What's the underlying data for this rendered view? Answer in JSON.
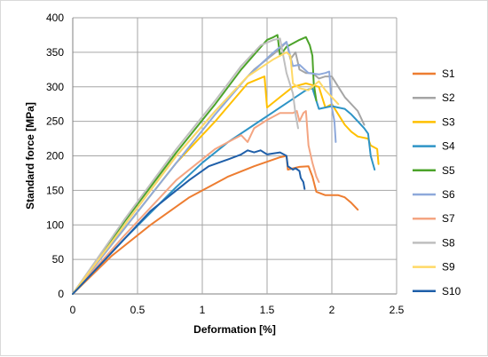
{
  "chart_data": {
    "type": "line",
    "title": "",
    "xlabel": "Deformation [%]",
    "ylabel": "Standard force [MPa]",
    "xlim": [
      0,
      2.5
    ],
    "ylim": [
      0,
      400
    ],
    "x_ticks": [
      "0",
      "0.5",
      "1",
      "1.5",
      "2",
      "2.5"
    ],
    "y_ticks": [
      "0",
      "50",
      "100",
      "150",
      "200",
      "250",
      "300",
      "350",
      "400"
    ],
    "grid": true,
    "legend_position": "right",
    "series": [
      {
        "name": "S1",
        "color": "#ED7D31",
        "points": [
          [
            0,
            0
          ],
          [
            0.3,
            55
          ],
          [
            0.6,
            100
          ],
          [
            0.9,
            140
          ],
          [
            1.2,
            170
          ],
          [
            1.4,
            185
          ],
          [
            1.6,
            198
          ],
          [
            1.65,
            200
          ],
          [
            1.66,
            180
          ],
          [
            1.75,
            184
          ],
          [
            1.82,
            185
          ],
          [
            1.85,
            170
          ],
          [
            1.88,
            148
          ],
          [
            1.95,
            143
          ],
          [
            2.05,
            143
          ],
          [
            2.1,
            140
          ],
          [
            2.15,
            132
          ],
          [
            2.2,
            122
          ]
        ]
      },
      {
        "name": "S2",
        "color": "#A5A5A5",
        "points": [
          [
            0,
            0
          ],
          [
            0.4,
            100
          ],
          [
            0.8,
            200
          ],
          [
            1.1,
            265
          ],
          [
            1.4,
            325
          ],
          [
            1.6,
            355
          ],
          [
            1.65,
            365
          ],
          [
            1.68,
            340
          ],
          [
            1.72,
            350
          ],
          [
            1.75,
            325
          ],
          [
            1.8,
            320
          ],
          [
            1.85,
            320
          ],
          [
            1.9,
            312
          ],
          [
            1.95,
            315
          ],
          [
            2.0,
            315
          ],
          [
            2.05,
            300
          ],
          [
            2.1,
            285
          ],
          [
            2.2,
            265
          ],
          [
            2.25,
            245
          ]
        ]
      },
      {
        "name": "S3",
        "color": "#FFC000",
        "points": [
          [
            0,
            0
          ],
          [
            0.4,
            95
          ],
          [
            0.8,
            190
          ],
          [
            1.1,
            250
          ],
          [
            1.35,
            305
          ],
          [
            1.48,
            315
          ],
          [
            1.5,
            270
          ],
          [
            1.6,
            285
          ],
          [
            1.7,
            300
          ],
          [
            1.8,
            305
          ],
          [
            1.9,
            300
          ],
          [
            1.95,
            270
          ],
          [
            2.0,
            275
          ],
          [
            2.05,
            260
          ],
          [
            2.1,
            245
          ],
          [
            2.15,
            235
          ],
          [
            2.2,
            228
          ],
          [
            2.28,
            225
          ],
          [
            2.3,
            215
          ],
          [
            2.35,
            210
          ],
          [
            2.36,
            188
          ]
        ]
      },
      {
        "name": "S4",
        "color": "#2E94C6",
        "points": [
          [
            0,
            0
          ],
          [
            0.4,
            80
          ],
          [
            0.8,
            155
          ],
          [
            1.0,
            190
          ],
          [
            1.2,
            220
          ],
          [
            1.4,
            245
          ],
          [
            1.6,
            270
          ],
          [
            1.8,
            295
          ],
          [
            1.85,
            298
          ],
          [
            1.9,
            268
          ],
          [
            2.0,
            272
          ],
          [
            2.05,
            270
          ],
          [
            2.1,
            268
          ],
          [
            2.15,
            260
          ],
          [
            2.2,
            250
          ],
          [
            2.25,
            240
          ],
          [
            2.28,
            232
          ],
          [
            2.3,
            200
          ],
          [
            2.33,
            180
          ]
        ]
      },
      {
        "name": "S5",
        "color": "#4CA32A",
        "points": [
          [
            0,
            0
          ],
          [
            0.4,
            105
          ],
          [
            0.8,
            205
          ],
          [
            1.1,
            275
          ],
          [
            1.3,
            325
          ],
          [
            1.5,
            368
          ],
          [
            1.55,
            372
          ],
          [
            1.58,
            375
          ],
          [
            1.6,
            345
          ],
          [
            1.65,
            358
          ],
          [
            1.75,
            368
          ],
          [
            1.8,
            372
          ],
          [
            1.83,
            360
          ],
          [
            1.85,
            345
          ],
          [
            1.86,
            305
          ],
          [
            1.88,
            280
          ]
        ]
      },
      {
        "name": "S6",
        "color": "#8EA9DB",
        "points": [
          [
            0,
            0
          ],
          [
            0.4,
            95
          ],
          [
            0.8,
            190
          ],
          [
            1.1,
            260
          ],
          [
            1.35,
            315
          ],
          [
            1.55,
            350
          ],
          [
            1.65,
            365
          ],
          [
            1.7,
            330
          ],
          [
            1.75,
            332
          ],
          [
            1.82,
            320
          ],
          [
            1.9,
            318
          ],
          [
            1.95,
            320
          ],
          [
            1.98,
            322
          ],
          [
            2.0,
            270
          ],
          [
            2.02,
            250
          ],
          [
            2.03,
            220
          ]
        ]
      },
      {
        "name": "S7",
        "color": "#F4A582",
        "points": [
          [
            0,
            0
          ],
          [
            0.4,
            85
          ],
          [
            0.8,
            165
          ],
          [
            1.1,
            210
          ],
          [
            1.3,
            230
          ],
          [
            1.35,
            220
          ],
          [
            1.4,
            240
          ],
          [
            1.5,
            252
          ],
          [
            1.6,
            262
          ],
          [
            1.7,
            262
          ],
          [
            1.73,
            265
          ],
          [
            1.75,
            250
          ],
          [
            1.78,
            262
          ],
          [
            1.8,
            265
          ],
          [
            1.82,
            215
          ],
          [
            1.85,
            190
          ],
          [
            1.88,
            170
          ],
          [
            1.9,
            162
          ]
        ]
      },
      {
        "name": "S8",
        "color": "#BFBFBF",
        "points": [
          [
            0,
            0
          ],
          [
            0.4,
            108
          ],
          [
            0.8,
            210
          ],
          [
            1.1,
            280
          ],
          [
            1.3,
            330
          ],
          [
            1.45,
            360
          ],
          [
            1.55,
            368
          ],
          [
            1.6,
            370
          ],
          [
            1.65,
            320
          ],
          [
            1.7,
            290
          ],
          [
            1.72,
            260
          ],
          [
            1.74,
            240
          ]
        ]
      },
      {
        "name": "S9",
        "color": "#FFD966",
        "points": [
          [
            0,
            0
          ],
          [
            0.4,
            100
          ],
          [
            0.8,
            200
          ],
          [
            1.1,
            265
          ],
          [
            1.35,
            315
          ],
          [
            1.55,
            340
          ],
          [
            1.65,
            350
          ],
          [
            1.68,
            345
          ],
          [
            1.7,
            305
          ],
          [
            1.75,
            298
          ],
          [
            1.82,
            295
          ],
          [
            1.85,
            300
          ],
          [
            1.9,
            308
          ],
          [
            1.95,
            295
          ],
          [
            2.0,
            285
          ],
          [
            2.05,
            275
          ]
        ]
      },
      {
        "name": "S10",
        "color": "#1F5FA9",
        "points": [
          [
            0,
            0
          ],
          [
            0.3,
            60
          ],
          [
            0.6,
            120
          ],
          [
            0.9,
            165
          ],
          [
            1.05,
            185
          ],
          [
            1.2,
            195
          ],
          [
            1.3,
            202
          ],
          [
            1.35,
            208
          ],
          [
            1.4,
            205
          ],
          [
            1.45,
            208
          ],
          [
            1.5,
            202
          ],
          [
            1.6,
            205
          ],
          [
            1.65,
            200
          ],
          [
            1.66,
            185
          ],
          [
            1.7,
            180
          ],
          [
            1.72,
            182
          ],
          [
            1.75,
            178
          ],
          [
            1.76,
            168
          ],
          [
            1.78,
            162
          ],
          [
            1.79,
            152
          ]
        ]
      }
    ]
  }
}
